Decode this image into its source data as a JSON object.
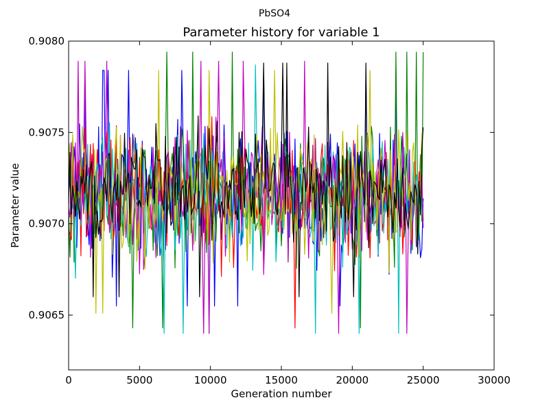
{
  "chart_data": {
    "type": "line",
    "suptitle": "PbSO4",
    "title": "Parameter history for variable 1",
    "xlabel": "Generation number",
    "ylabel": "Parameter value",
    "xlim": [
      0,
      30000
    ],
    "ylim": [
      0.9062,
      0.908
    ],
    "xticks": [
      {
        "value": 0,
        "label": "0"
      },
      {
        "value": 5000,
        "label": "5000"
      },
      {
        "value": 10000,
        "label": "10000"
      },
      {
        "value": 15000,
        "label": "15000"
      },
      {
        "value": 20000,
        "label": "20000"
      },
      {
        "value": 25000,
        "label": "25000"
      },
      {
        "value": 30000,
        "label": "30000"
      }
    ],
    "yticks": [
      {
        "value": 0.9065,
        "label": "0.9065"
      },
      {
        "value": 0.907,
        "label": "0.9070"
      },
      {
        "value": 0.9075,
        "label": "0.9075"
      },
      {
        "value": 0.908,
        "label": "0.9080"
      }
    ],
    "grid": false,
    "legend": "none",
    "x_range": [
      0,
      25000
    ],
    "series": [
      {
        "color": "#0000ff",
        "mean": 0.90718,
        "spread": 0.0004,
        "min": 0.90655,
        "max": 0.90784
      },
      {
        "color": "#008000",
        "mean": 0.90716,
        "spread": 0.0004,
        "min": 0.90643,
        "max": 0.90794
      },
      {
        "color": "#ff0000",
        "mean": 0.90716,
        "spread": 0.0004,
        "min": 0.90643,
        "max": 0.90789
      },
      {
        "color": "#00bfbf",
        "mean": 0.90716,
        "spread": 0.0004,
        "min": 0.9064,
        "max": 0.90787
      },
      {
        "color": "#bf00bf",
        "mean": 0.90716,
        "spread": 0.0004,
        "min": 0.9064,
        "max": 0.90789
      },
      {
        "color": "#bfbf00",
        "mean": 0.90717,
        "spread": 0.0004,
        "min": 0.90651,
        "max": 0.90784
      },
      {
        "color": "#000000",
        "mean": 0.9072,
        "spread": 0.00032,
        "min": 0.9066,
        "max": 0.90788
      }
    ]
  }
}
